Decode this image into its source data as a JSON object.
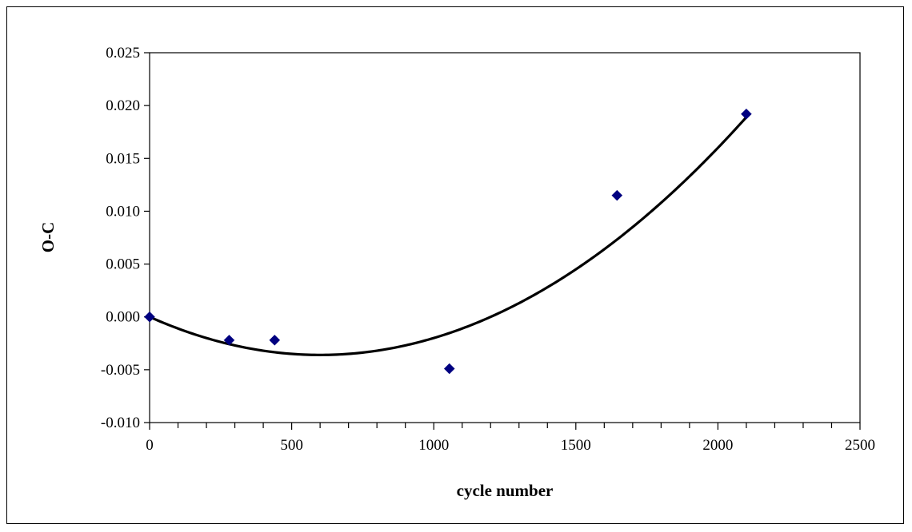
{
  "chart_data": {
    "type": "scatter",
    "title": "",
    "xlabel": "cycle number",
    "ylabel": "O-C",
    "xlim": [
      0,
      2500
    ],
    "ylim": [
      -0.01,
      0.025
    ],
    "x_ticks": [
      "0",
      "500",
      "1000",
      "1500",
      "2000",
      "2500"
    ],
    "y_ticks": [
      "-0.010",
      "-0.005",
      "0.000",
      "0.005",
      "0.010",
      "0.015",
      "0.020",
      "0.025"
    ],
    "grid": false,
    "legend": "none",
    "series": [
      {
        "kind": "points",
        "marker": "diamond",
        "color": "#000080",
        "x": [
          0,
          280,
          440,
          1055,
          1645,
          2100
        ],
        "y": [
          0.0,
          -0.0022,
          -0.0022,
          -0.0049,
          0.0115,
          0.0192
        ]
      },
      {
        "kind": "fit",
        "style": "quadratic trendline",
        "color": "#000000",
        "coefficients": {
          "a": 1e-08,
          "b": -1.2e-05,
          "c": 0.0
        },
        "x_range": [
          0,
          2100
        ]
      }
    ]
  }
}
